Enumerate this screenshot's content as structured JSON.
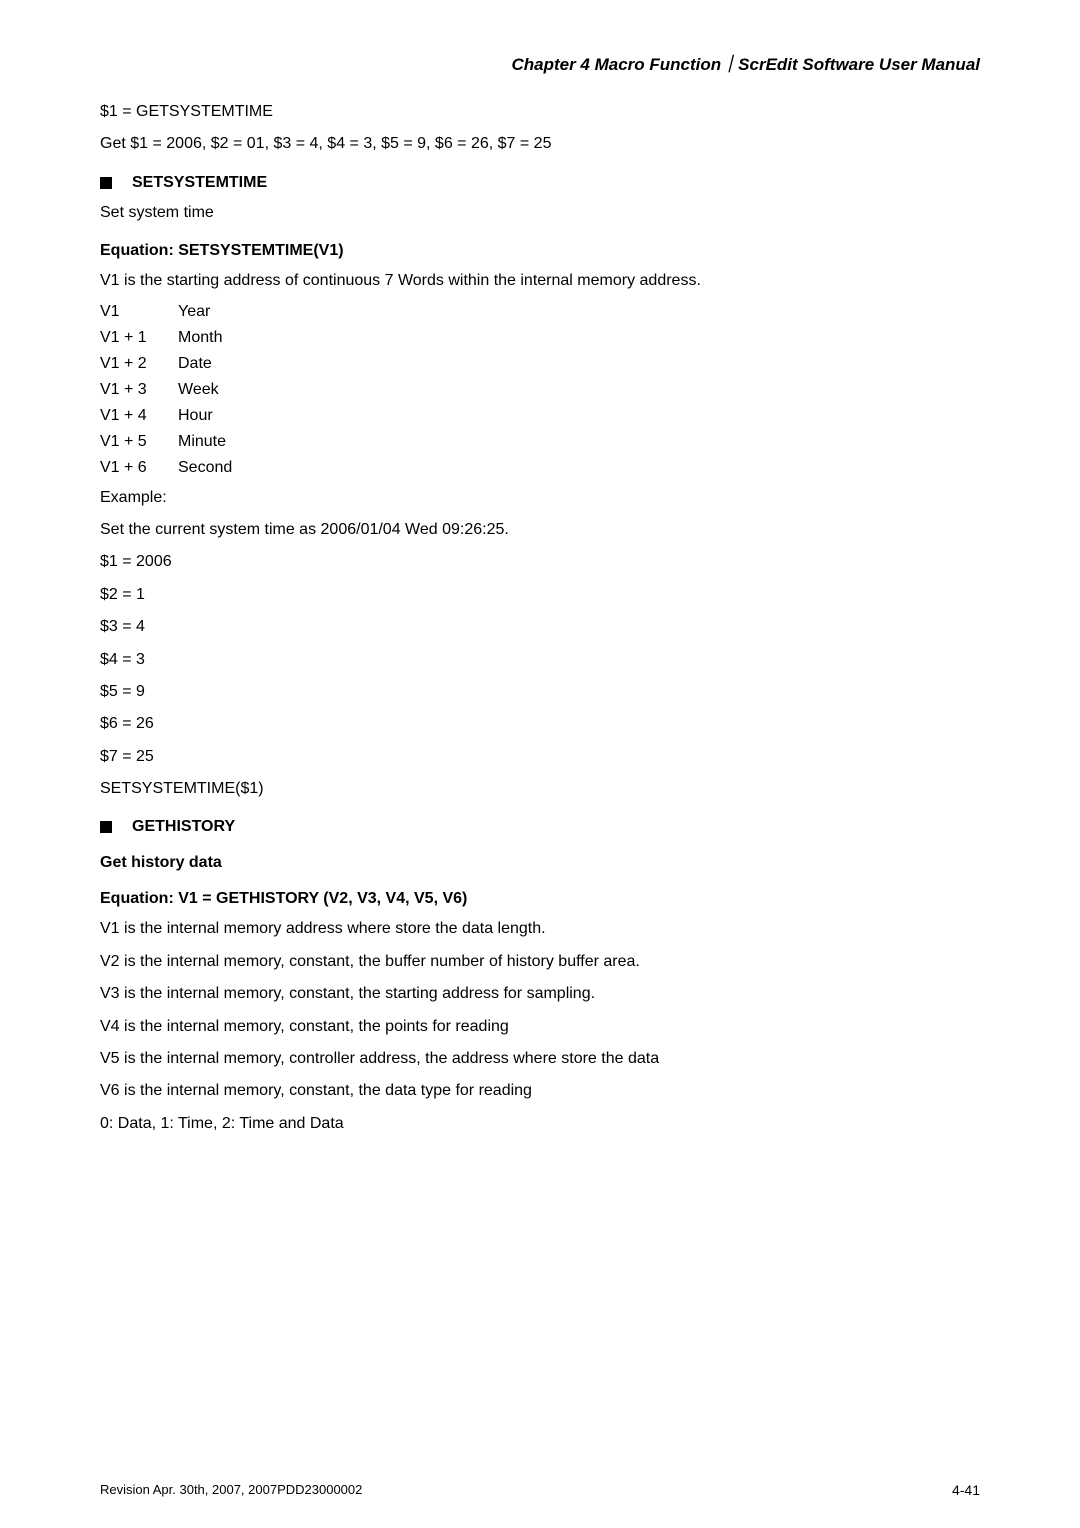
{
  "header": {
    "title": "Chapter 4  Macro Function｜ScrEdit Software User Manual"
  },
  "lines_top": [
    "$1 = GETSYSTEMTIME",
    "Get $1 = 2006, $2 = 01, $3 = 4, $4 = 3, $5 = 9, $6 = 26, $7 = 25"
  ],
  "section_setsystemtime": {
    "title": "SETSYSTEMTIME",
    "body1": "Set system time",
    "equation_label": "Equation:   SETSYSTEMTIME(V1)",
    "body2": "V1 is the starting address of continuous 7 Words within the internal memory address.",
    "kv": [
      {
        "k": "V1",
        "v": "Year"
      },
      {
        "k": "V1 + 1",
        "v": "Month"
      },
      {
        "k": "V1 + 2",
        "v": "Date"
      },
      {
        "k": "V1 + 3",
        "v": "Week"
      },
      {
        "k": "V1 + 4",
        "v": "Hour"
      },
      {
        "k": "V1 + 5",
        "v": "Minute"
      },
      {
        "k": "V1 + 6",
        "v": "Second"
      }
    ],
    "example_label": "Example:",
    "example_body": "Set the current system time as 2006/01/04 Wed 09:26:25.",
    "assignments": [
      "$1 = 2006",
      "$2 = 1",
      "$3 = 4",
      "$4 = 3",
      "$5 = 9",
      "$6 = 26",
      "$7 = 25",
      "SETSYSTEMTIME($1)"
    ]
  },
  "section_gethistory": {
    "title": "GETHISTORY",
    "subtitle": "Get history data",
    "equation_label": "Equation:   V1 = GETHISTORY (V2, V3, V4, V5, V6)",
    "body": [
      "V1 is the internal memory address where store the data length.",
      "V2 is the internal memory, constant, the buffer number of history buffer area.",
      "V3 is the internal memory, constant, the starting address for sampling.",
      "V4 is the internal memory, constant, the points for reading",
      "V5 is the internal memory, controller address, the address where store the data",
      "V6 is the internal memory, constant, the data type for reading",
      "0: Data, 1: Time, 2: Time and Data"
    ]
  },
  "footer": {
    "left": "Revision Apr. 30th, 2007, 2007PDD23000002",
    "right": "4-41"
  }
}
